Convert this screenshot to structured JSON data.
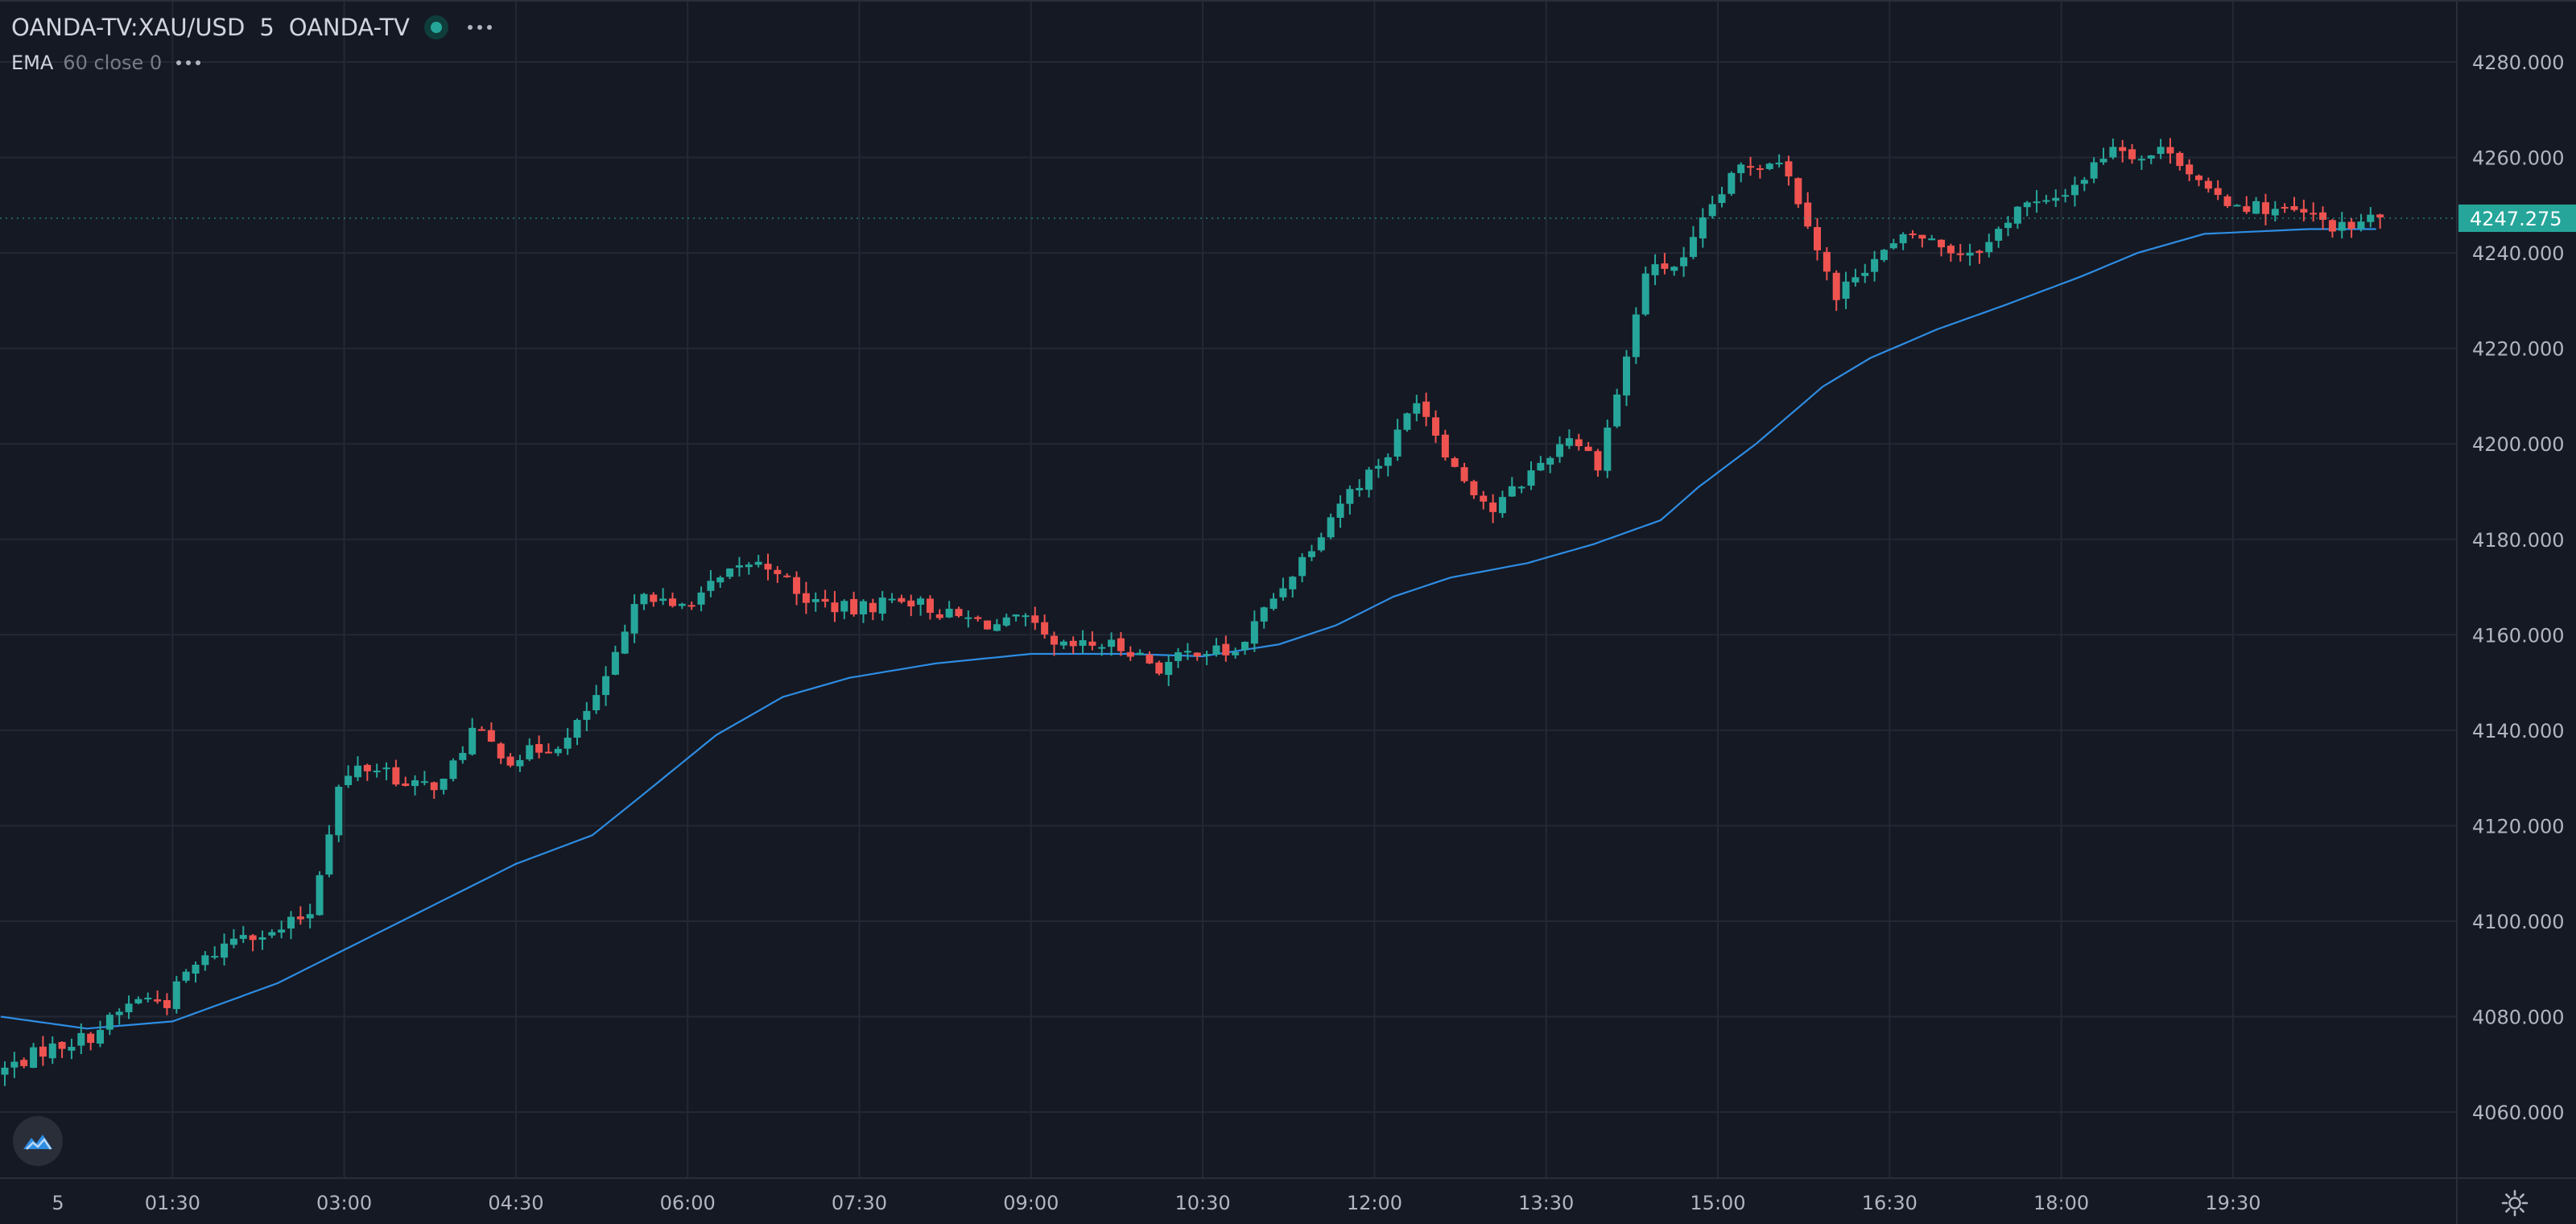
{
  "legend": {
    "symbol": "OANDA-TV:XAU/USD",
    "interval": "5",
    "source": "OANDA-TV",
    "indicator_name": "EMA",
    "indicator_params": "60 close 0"
  },
  "colors": {
    "background": "#151924",
    "grid": "#242834",
    "up": "#26a69a",
    "down": "#ef5350",
    "ema": "#2e8de3",
    "text": "#b2b5be",
    "price_label_bg": "#26a69a"
  },
  "icons": {
    "status": "market-open-dot-icon",
    "more": "more-dots-icon",
    "logo": "tradingview-logo-icon",
    "settings": "gear-icon"
  },
  "chart_data": {
    "type": "candlestick",
    "symbol": "XAU/USD",
    "interval_minutes": 5,
    "y_ticks": [
      "4280.000",
      "4260.000",
      "4240.000",
      "4220.000",
      "4200.000",
      "4180.000",
      "4160.000",
      "4140.000",
      "4120.000",
      "4100.000",
      "4080.000",
      "4060.000"
    ],
    "x_ticks": [
      "5",
      "01:30",
      "03:00",
      "04:30",
      "06:00",
      "07:30",
      "09:00",
      "10:30",
      "12:00",
      "13:30",
      "15:00",
      "16:30",
      "18:00",
      "19:30"
    ],
    "ylim": [
      4048,
      4285
    ],
    "last_price": "4247.275",
    "grid": true,
    "price_anchors": [
      [
        "00:00",
        4068
      ],
      [
        "00:25",
        4073
      ],
      [
        "00:50",
        4076
      ],
      [
        "01:15",
        4084
      ],
      [
        "01:30",
        4083
      ],
      [
        "01:40",
        4089
      ],
      [
        "02:10",
        4098
      ],
      [
        "02:25",
        4097
      ],
      [
        "02:45",
        4102
      ],
      [
        "03:00",
        4128
      ],
      [
        "03:10",
        4132
      ],
      [
        "03:25",
        4132
      ],
      [
        "03:35",
        4128
      ],
      [
        "03:55",
        4129
      ],
      [
        "04:10",
        4140
      ],
      [
        "04:30",
        4134
      ],
      [
        "05:00",
        4138
      ],
      [
        "05:20",
        4150
      ],
      [
        "05:40",
        4170
      ],
      [
        "05:55",
        4165
      ],
      [
        "06:15",
        4170
      ],
      [
        "06:35",
        4175
      ],
      [
        "06:50",
        4174
      ],
      [
        "07:00",
        4168
      ],
      [
        "07:30",
        4165
      ],
      [
        "07:55",
        4168
      ],
      [
        "08:20",
        4164
      ],
      [
        "08:45",
        4162
      ],
      [
        "09:00",
        4163
      ],
      [
        "09:15",
        4157
      ],
      [
        "09:40",
        4158
      ],
      [
        "09:55",
        4157
      ],
      [
        "10:10",
        4153
      ],
      [
        "10:30",
        4157
      ],
      [
        "10:50",
        4156
      ],
      [
        "11:05",
        4165
      ],
      [
        "11:25",
        4176
      ],
      [
        "11:45",
        4188
      ],
      [
        "12:10",
        4198
      ],
      [
        "12:25",
        4210
      ],
      [
        "12:45",
        4195
      ],
      [
        "13:05",
        4186
      ],
      [
        "13:25",
        4194
      ],
      [
        "13:45",
        4202
      ],
      [
        "14:00",
        4196
      ],
      [
        "14:15",
        4218
      ],
      [
        "14:25",
        4236
      ],
      [
        "14:45",
        4238
      ],
      [
        "15:00",
        4250
      ],
      [
        "15:15",
        4258
      ],
      [
        "15:35",
        4260
      ],
      [
        "15:50",
        4247
      ],
      [
        "16:05",
        4230
      ],
      [
        "16:15",
        4236
      ],
      [
        "16:45",
        4244
      ],
      [
        "17:10",
        4240
      ],
      [
        "17:25",
        4242
      ],
      [
        "17:40",
        4250
      ],
      [
        "17:55",
        4250
      ],
      [
        "18:15",
        4256
      ],
      [
        "18:30",
        4263
      ],
      [
        "18:45",
        4260
      ],
      [
        "19:00",
        4262
      ],
      [
        "19:20",
        4252
      ],
      [
        "19:40",
        4250
      ],
      [
        "20:10",
        4248
      ],
      [
        "20:30",
        4245
      ],
      [
        "20:45",
        4247
      ]
    ],
    "ema_anchors": [
      [
        "00:00",
        4080
      ],
      [
        "00:45",
        4077.5
      ],
      [
        "01:30",
        4079
      ],
      [
        "02:25",
        4087
      ],
      [
        "03:00",
        4094
      ],
      [
        "03:30",
        4100
      ],
      [
        "04:00",
        4106
      ],
      [
        "04:30",
        4112
      ],
      [
        "05:10",
        4118
      ],
      [
        "05:35",
        4126
      ],
      [
        "06:15",
        4139
      ],
      [
        "06:50",
        4147
      ],
      [
        "07:25",
        4151
      ],
      [
        "08:10",
        4154
      ],
      [
        "09:00",
        4156
      ],
      [
        "09:50",
        4156
      ],
      [
        "10:30",
        4155.5
      ],
      [
        "11:10",
        4158
      ],
      [
        "11:40",
        4162
      ],
      [
        "12:10",
        4168
      ],
      [
        "12:40",
        4172
      ],
      [
        "13:20",
        4175
      ],
      [
        "13:55",
        4179
      ],
      [
        "14:30",
        4184
      ],
      [
        "14:50",
        4191
      ],
      [
        "15:20",
        4200
      ],
      [
        "15:55",
        4212
      ],
      [
        "16:20",
        4218
      ],
      [
        "16:55",
        4224
      ],
      [
        "17:30",
        4229
      ],
      [
        "18:10",
        4235
      ],
      [
        "18:40",
        4240
      ],
      [
        "19:15",
        4244
      ],
      [
        "20:10",
        4245
      ],
      [
        "20:45",
        4245
      ]
    ],
    "series": [
      {
        "name": "EMA 60 close 0",
        "type": "line"
      }
    ]
  }
}
